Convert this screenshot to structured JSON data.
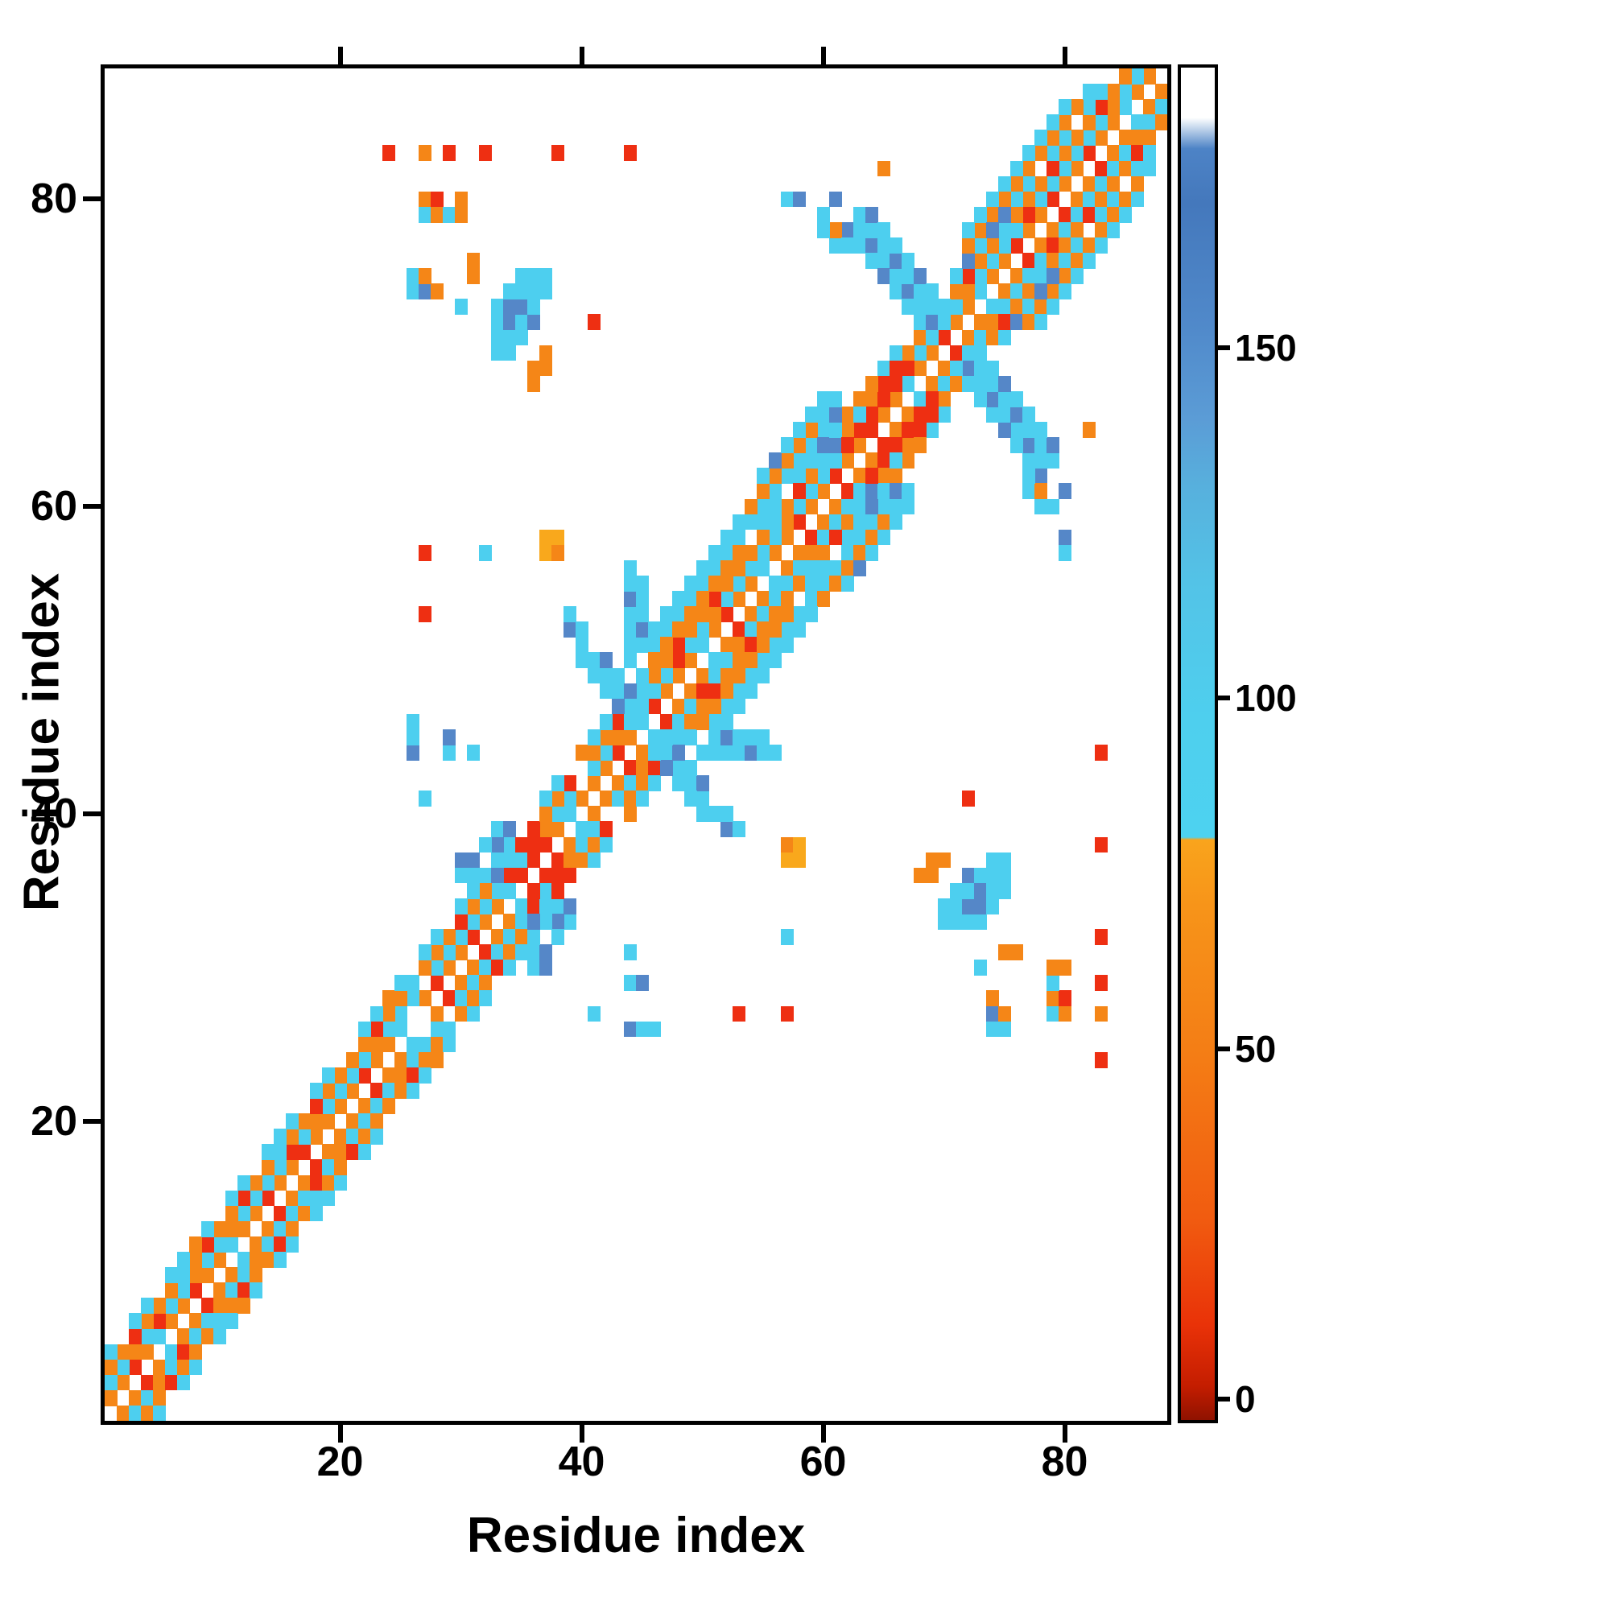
{
  "figure": {
    "xlabel": "Residue index",
    "ylabel": "Residue index",
    "x_ticks": [
      20,
      40,
      60,
      80
    ],
    "y_ticks": [
      20,
      40,
      60,
      80
    ]
  },
  "colors": {
    "r": "#ee2f12",
    "o": "#f58617",
    "y": "#f9a81c",
    "c": "#4dcfef",
    "b": "#5587c8"
  },
  "colorbar": {
    "ticks": [
      0,
      50,
      100,
      150
    ],
    "vmin": -3,
    "vmax": 190,
    "warm_cool_boundary": 80
  },
  "chart_data": {
    "type": "heatmap",
    "title": "",
    "xlabel": "Residue index",
    "ylabel": "Residue index",
    "n_residues": 88,
    "x_range": [
      1,
      88
    ],
    "y_range": [
      1,
      88
    ],
    "symmetric": true,
    "note": "Symmetric residue-residue contact map; cells colored by contact value per colorbar (red~0, orange~55, amber~70, cyan~100, blue~150). Bands encode near-diagonal contacts as strings: char k of a band with offset d is the contact (k, k+d); '.'=no contact. Explicit cells are [i, j, class] with mirror (j, i) implied.",
    "value_legend": {
      "r": 5,
      "o": 55,
      "y": 70,
      "c": 100,
      "b": 150
    },
    "bands": [
      {
        "offset": 1,
        "cells": [
          "oorocooroo",
          "cooroorooo",
          "orooc.oroo",
          "roocooroco",
          "oorooroooc",
          "oroocooroo",
          "rooroocoor",
          "oocoorooro",
          "oroocoo"
        ]
      },
      {
        "offset": 2,
        "cells": [
          "ccocrccocc",
          "occccrcocc",
          "ccoccc.ccc",
          "cccrccocc.",
          "ccoccccrcc",
          "occcccoccc",
          "ccrccocccc",
          "coccccrccc",
          "cccocc"
        ]
      },
      {
        "offset": 3,
        "cells": [
          "oorooocoro",
          "oroocooroo",
          "ooroocooor",
          "oocooroor.",
          "oorocooroo",
          "roooocoroo",
          "ooroocooro",
          "oroocoooro",
          "ooroo"
        ]
      },
      {
        "offset": 4,
        "cells": [
          "c.cc.ccoc.",
          "cc.ccc.cc.",
          ".ccoc.cc.c",
          "c.cc..cc.o",
          "cc.ccoc.cc",
          ".cc.cc.ccc",
          "cc.ccc.cb.",
          "cbcc.cc.cc",
          ".cc."
        ]
      }
    ],
    "cells": [
      [
        62,
        78,
        "b"
      ],
      [
        63,
        78,
        "c"
      ],
      [
        63,
        77,
        "c"
      ],
      [
        64,
        77,
        "b"
      ],
      [
        64,
        76,
        "c"
      ],
      [
        65,
        76,
        "c"
      ],
      [
        65,
        75,
        "b"
      ],
      [
        66,
        75,
        "c"
      ],
      [
        66,
        74,
        "c"
      ],
      [
        67,
        74,
        "b"
      ],
      [
        67,
        73,
        "c"
      ],
      [
        68,
        73,
        "c"
      ],
      [
        68,
        72,
        "c"
      ],
      [
        69,
        72,
        "b"
      ],
      [
        69,
        71,
        "c"
      ],
      [
        63,
        79,
        "c"
      ],
      [
        64,
        78,
        "c"
      ],
      [
        65,
        77,
        "c"
      ],
      [
        66,
        76,
        "b"
      ],
      [
        67,
        75,
        "c"
      ],
      [
        68,
        74,
        "c"
      ],
      [
        69,
        73,
        "c"
      ],
      [
        70,
        72,
        "c"
      ],
      [
        64,
        79,
        "b"
      ],
      [
        65,
        78,
        "c"
      ],
      [
        66,
        77,
        "c"
      ],
      [
        67,
        76,
        "c"
      ],
      [
        68,
        75,
        "b"
      ],
      [
        69,
        74,
        "c"
      ],
      [
        70,
        73,
        "c"
      ],
      [
        61,
        77,
        "c"
      ],
      [
        61,
        78,
        "o"
      ],
      [
        62,
        77,
        "c"
      ],
      [
        64,
        66,
        "r"
      ],
      [
        65,
        67,
        "r"
      ],
      [
        65,
        68,
        "r"
      ],
      [
        66,
        68,
        "r"
      ],
      [
        66,
        69,
        "r"
      ],
      [
        67,
        69,
        "r"
      ],
      [
        62,
        66,
        "o"
      ],
      [
        63,
        67,
        "o"
      ],
      [
        64,
        68,
        "o"
      ],
      [
        63,
        66,
        "c"
      ],
      [
        72,
        77,
        "o"
      ],
      [
        73,
        78,
        "o"
      ],
      [
        74,
        79,
        "o"
      ],
      [
        75,
        80,
        "o"
      ],
      [
        76,
        81,
        "o"
      ],
      [
        77,
        82,
        "o"
      ],
      [
        78,
        83,
        "o"
      ],
      [
        79,
        84,
        "o"
      ],
      [
        80,
        85,
        "o"
      ],
      [
        81,
        86,
        "o"
      ],
      [
        72,
        78,
        "c"
      ],
      [
        73,
        79,
        "c"
      ],
      [
        74,
        80,
        "c"
      ],
      [
        75,
        81,
        "c"
      ],
      [
        76,
        82,
        "c"
      ],
      [
        77,
        83,
        "c"
      ],
      [
        78,
        84,
        "c"
      ],
      [
        79,
        85,
        "c"
      ],
      [
        80,
        86,
        "c"
      ],
      [
        82,
        87,
        "c"
      ],
      [
        74,
        78,
        "b"
      ],
      [
        75,
        79,
        "b"
      ],
      [
        54,
        59,
        "c"
      ],
      [
        55,
        60,
        "c"
      ],
      [
        56,
        61,
        "c"
      ],
      [
        57,
        62,
        "c"
      ],
      [
        58,
        63,
        "c"
      ],
      [
        59,
        64,
        "c"
      ],
      [
        60,
        65,
        "c"
      ],
      [
        54,
        60,
        "o"
      ],
      [
        55,
        61,
        "o"
      ],
      [
        56,
        62,
        "o"
      ],
      [
        57,
        63,
        "o"
      ],
      [
        58,
        64,
        "o"
      ],
      [
        59,
        65,
        "o"
      ],
      [
        55,
        62,
        "c"
      ],
      [
        56,
        63,
        "b"
      ],
      [
        57,
        64,
        "c"
      ],
      [
        58,
        65,
        "c"
      ],
      [
        60,
        63,
        "c"
      ],
      [
        60,
        64,
        "b"
      ],
      [
        61,
        64,
        "b"
      ],
      [
        61,
        65,
        "c"
      ],
      [
        58,
        61,
        "r"
      ],
      [
        62,
        64,
        "r"
      ],
      [
        59,
        66,
        "c"
      ],
      [
        60,
        66,
        "c"
      ],
      [
        61,
        66,
        "b"
      ],
      [
        60,
        67,
        "c"
      ],
      [
        61,
        67,
        "c"
      ],
      [
        41,
        50,
        "c"
      ],
      [
        42,
        49,
        "c"
      ],
      [
        43,
        48,
        "c"
      ],
      [
        44,
        47,
        "c"
      ],
      [
        45,
        46,
        "c"
      ],
      [
        42,
        50,
        "b"
      ],
      [
        43,
        49,
        "c"
      ],
      [
        44,
        48,
        "b"
      ],
      [
        45,
        47,
        "c"
      ],
      [
        41,
        49,
        "c"
      ],
      [
        42,
        48,
        "c"
      ],
      [
        43,
        47,
        "b"
      ],
      [
        44,
        46,
        "c"
      ],
      [
        40,
        50,
        "c"
      ],
      [
        40,
        51,
        "c"
      ],
      [
        44,
        50,
        "c"
      ],
      [
        44,
        51,
        "c"
      ],
      [
        45,
        51,
        "c"
      ],
      [
        44,
        52,
        "c"
      ],
      [
        45,
        52,
        "b"
      ],
      [
        44,
        53,
        "c"
      ],
      [
        45,
        53,
        "c"
      ],
      [
        44,
        54,
        "b"
      ],
      [
        45,
        54,
        "c"
      ],
      [
        44,
        55,
        "c"
      ],
      [
        45,
        55,
        "c"
      ],
      [
        44,
        56,
        "c"
      ],
      [
        46,
        51,
        "c"
      ],
      [
        46,
        52,
        "c"
      ],
      [
        47,
        52,
        "c"
      ],
      [
        47,
        53,
        "c"
      ],
      [
        48,
        53,
        "c"
      ],
      [
        48,
        54,
        "c"
      ],
      [
        49,
        54,
        "c"
      ],
      [
        49,
        55,
        "c"
      ],
      [
        50,
        55,
        "c"
      ],
      [
        50,
        56,
        "c"
      ],
      [
        51,
        56,
        "c"
      ],
      [
        51,
        57,
        "c"
      ],
      [
        52,
        57,
        "c"
      ],
      [
        52,
        58,
        "c"
      ],
      [
        53,
        58,
        "c"
      ],
      [
        53,
        59,
        "c"
      ],
      [
        46,
        50,
        "o"
      ],
      [
        47,
        51,
        "o"
      ],
      [
        48,
        52,
        "o"
      ],
      [
        49,
        53,
        "o"
      ],
      [
        50,
        54,
        "o"
      ],
      [
        51,
        55,
        "o"
      ],
      [
        52,
        56,
        "o"
      ],
      [
        53,
        57,
        "o"
      ],
      [
        33,
        39,
        "c"
      ],
      [
        34,
        38,
        "c"
      ],
      [
        35,
        37,
        "c"
      ],
      [
        33,
        38,
        "b"
      ],
      [
        34,
        37,
        "c"
      ],
      [
        32,
        38,
        "c"
      ],
      [
        33,
        37,
        "c"
      ],
      [
        34,
        39,
        "b"
      ],
      [
        30,
        36,
        "c"
      ],
      [
        30,
        37,
        "b"
      ],
      [
        31,
        36,
        "c"
      ],
      [
        31,
        37,
        "b"
      ],
      [
        32,
        36,
        "c"
      ],
      [
        33,
        36,
        "b"
      ],
      [
        35,
        36,
        "r"
      ],
      [
        35,
        38,
        "r"
      ],
      [
        36,
        37,
        "r"
      ],
      [
        36,
        38,
        "r"
      ],
      [
        33,
        70,
        "c"
      ],
      [
        33,
        71,
        "c"
      ],
      [
        33,
        72,
        "c"
      ],
      [
        33,
        73,
        "c"
      ],
      [
        34,
        70,
        "c"
      ],
      [
        34,
        71,
        "c"
      ],
      [
        34,
        72,
        "b"
      ],
      [
        34,
        73,
        "b"
      ],
      [
        34,
        74,
        "c"
      ],
      [
        35,
        71,
        "c"
      ],
      [
        35,
        72,
        "c"
      ],
      [
        35,
        73,
        "b"
      ],
      [
        35,
        74,
        "c"
      ],
      [
        35,
        75,
        "c"
      ],
      [
        36,
        72,
        "b"
      ],
      [
        36,
        73,
        "c"
      ],
      [
        36,
        74,
        "c"
      ],
      [
        36,
        75,
        "c"
      ],
      [
        37,
        74,
        "c"
      ],
      [
        37,
        75,
        "c"
      ],
      [
        36,
        68,
        "o"
      ],
      [
        36,
        69,
        "o"
      ],
      [
        37,
        69,
        "o"
      ],
      [
        37,
        70,
        "o"
      ],
      [
        41,
        72,
        "r"
      ],
      [
        24,
        83,
        "r"
      ],
      [
        27,
        83,
        "o"
      ],
      [
        29,
        83,
        "r"
      ],
      [
        32,
        83,
        "r"
      ],
      [
        38,
        83,
        "r"
      ],
      [
        44,
        83,
        "r"
      ],
      [
        27,
        79,
        "c"
      ],
      [
        27,
        80,
        "o"
      ],
      [
        28,
        79,
        "o"
      ],
      [
        28,
        80,
        "r"
      ],
      [
        29,
        79,
        "c"
      ],
      [
        30,
        79,
        "o"
      ],
      [
        30,
        80,
        "o"
      ],
      [
        26,
        74,
        "c"
      ],
      [
        26,
        75,
        "c"
      ],
      [
        27,
        74,
        "b"
      ],
      [
        27,
        75,
        "o"
      ],
      [
        28,
        74,
        "o"
      ],
      [
        30,
        73,
        "c"
      ],
      [
        31,
        75,
        "o"
      ],
      [
        31,
        76,
        "o"
      ],
      [
        27,
        53,
        "r"
      ],
      [
        27,
        57,
        "r"
      ],
      [
        32,
        57,
        "c"
      ],
      [
        37,
        57,
        "y"
      ],
      [
        37,
        58,
        "y"
      ],
      [
        38,
        57,
        "o"
      ],
      [
        38,
        58,
        "y"
      ],
      [
        26,
        44,
        "b"
      ],
      [
        26,
        45,
        "c"
      ],
      [
        26,
        46,
        "c"
      ],
      [
        27,
        41,
        "c"
      ],
      [
        29,
        44,
        "c"
      ],
      [
        29,
        45,
        "b"
      ],
      [
        31,
        44,
        "c"
      ],
      [
        39,
        52,
        "b"
      ],
      [
        39,
        53,
        "c"
      ],
      [
        40,
        52,
        "c"
      ],
      [
        57,
        80,
        "c"
      ],
      [
        58,
        80,
        "b"
      ],
      [
        60,
        78,
        "c"
      ],
      [
        60,
        79,
        "c"
      ],
      [
        61,
        80,
        "b"
      ],
      [
        65,
        82,
        "o"
      ]
    ]
  }
}
